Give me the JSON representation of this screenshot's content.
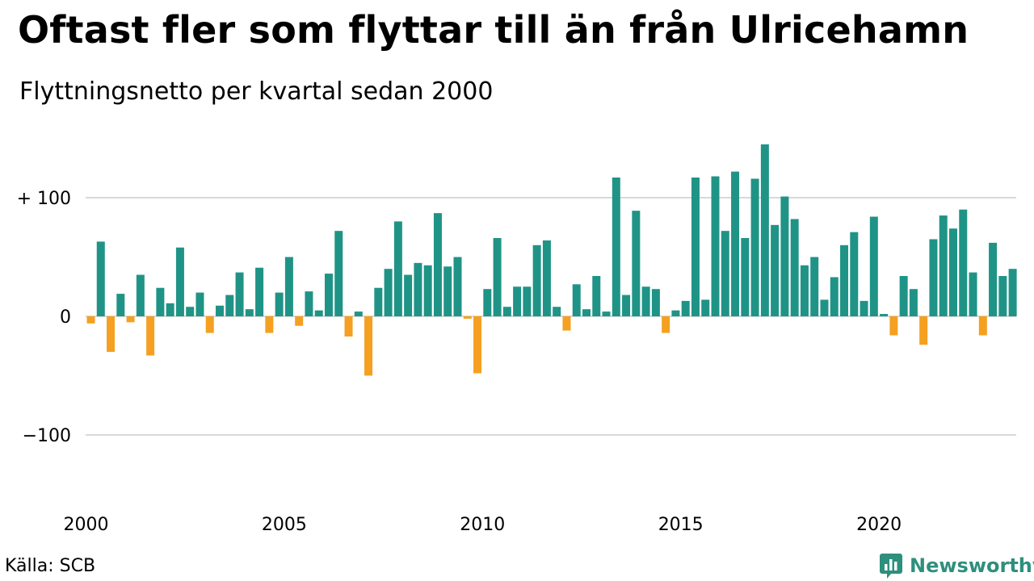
{
  "title": "Oftast fler som flyttar till än från Ulricehamn",
  "subtitle": "Flyttningsnetto per kvartal sedan 2000",
  "source": "Källa: SCB",
  "brand": "Newsworthy",
  "colors": {
    "positive": "#1f9486",
    "negative": "#f5a020",
    "gridline": "#d9d9d9",
    "brand": "#2e8f7d"
  },
  "chart_data": {
    "type": "bar",
    "title": "Oftast fler som flyttar till än från Ulricehamn",
    "subtitle": "Flyttningsnetto per kvartal sedan 2000",
    "xlabel": "",
    "ylabel": "",
    "start_year": 2000,
    "periods_per_year": 4,
    "ylim": [
      -165,
      150
    ],
    "yticks": [
      {
        "value": 100,
        "label": "+ 100"
      },
      {
        "value": 0,
        "label": "0"
      },
      {
        "value": -100,
        "label": "−100"
      }
    ],
    "xticks": [
      {
        "year": 2000,
        "label": "2000"
      },
      {
        "year": 2005,
        "label": "2005"
      },
      {
        "year": 2010,
        "label": "2010"
      },
      {
        "year": 2015,
        "label": "2015"
      },
      {
        "year": 2020,
        "label": "2020"
      }
    ],
    "grid": true,
    "legend": "none",
    "values": [
      -6,
      63,
      -30,
      19,
      -5,
      35,
      -33,
      24,
      11,
      58,
      8,
      20,
      -14,
      9,
      18,
      37,
      6,
      41,
      -14,
      20,
      50,
      -8,
      21,
      5,
      36,
      72,
      -17,
      4,
      -50,
      24,
      40,
      80,
      35,
      45,
      43,
      87,
      42,
      50,
      -2,
      -48,
      23,
      66,
      8,
      25,
      25,
      60,
      64,
      8,
      -12,
      27,
      6,
      34,
      4,
      117,
      18,
      89,
      25,
      23,
      -14,
      5,
      13,
      117,
      14,
      118,
      72,
      122,
      66,
      116,
      145,
      77,
      101,
      82,
      43,
      50,
      14,
      33,
      60,
      71,
      13,
      84,
      2,
      -16,
      34,
      23,
      -24,
      65,
      85,
      74,
      90,
      37,
      -16,
      62,
      34,
      40
    ]
  }
}
